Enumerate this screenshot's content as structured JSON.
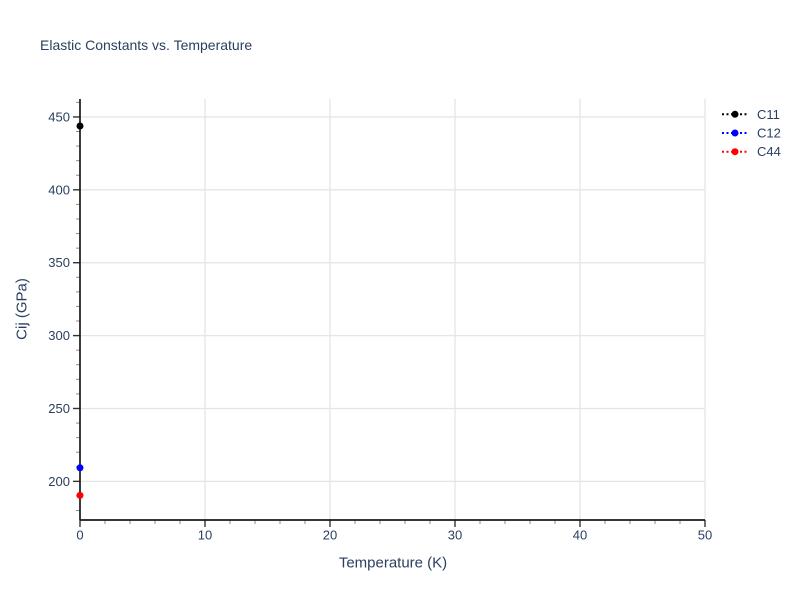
{
  "page": {
    "background": "#ffffff"
  },
  "chart": {
    "title": "Elastic Constants vs. Temperature",
    "xlabel": "Temperature (K)",
    "ylabel": "Cij (GPa)"
  },
  "chart_data": {
    "type": "scatter",
    "title": "Elastic Constants vs. Temperature",
    "xlabel": "Temperature (K)",
    "ylabel": "Cij (GPa)",
    "xlim": [
      0,
      50
    ],
    "ylim": [
      173.5,
      462.3
    ],
    "x_major_ticks": [
      0,
      10,
      20,
      30,
      40,
      50
    ],
    "y_major_ticks": [
      200,
      250,
      300,
      350,
      400,
      450
    ],
    "x_minor_step": 2,
    "y_minor_step": 10,
    "grid": true,
    "legend_position": "outside-top-right",
    "series": [
      {
        "name": "C11",
        "color": "#000000",
        "marker": "circle",
        "line_dash": "dot",
        "x": [
          0
        ],
        "y": [
          443.8
        ]
      },
      {
        "name": "C12",
        "color": "#0000ff",
        "marker": "circle",
        "line_dash": "dot",
        "x": [
          0
        ],
        "y": [
          209.3
        ]
      },
      {
        "name": "C44",
        "color": "#ff0000",
        "marker": "circle",
        "line_dash": "dot",
        "x": [
          0
        ],
        "y": [
          190.4
        ]
      }
    ]
  },
  "colors": {
    "text": "#2a3f5f",
    "grid_line": "#e5e5e5",
    "axis_line": "#1a1a1a",
    "major_tick": "#333333",
    "minor_tick": "#8c8c8c",
    "background": "#ffffff"
  }
}
